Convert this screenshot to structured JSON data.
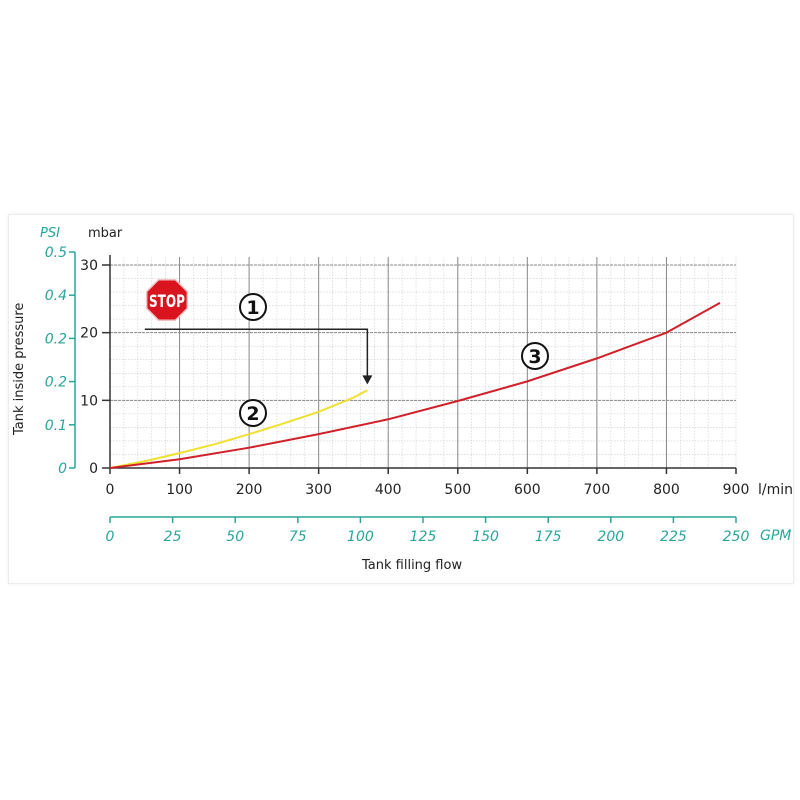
{
  "chart_data": {
    "type": "line",
    "xlabel": "Tank filling flow",
    "ylabel": "Tank inside pressure",
    "x_unit": "l/min",
    "y_unit": "mbar",
    "xlim": [
      0,
      900
    ],
    "ylim": [
      0,
      30
    ],
    "x_ticks": [
      "0",
      "100",
      "200",
      "300",
      "400",
      "500",
      "600",
      "700",
      "800",
      "900"
    ],
    "y_ticks": [
      "0",
      "10",
      "20",
      "30"
    ],
    "secondary_x": {
      "unit": "GPM",
      "range": [
        0,
        250
      ],
      "ticks": [
        "0",
        "25",
        "50",
        "75",
        "100",
        "125",
        "150",
        "175",
        "200",
        "225",
        "250"
      ],
      "color": "#2aa59a"
    },
    "secondary_y": {
      "unit": "PSI",
      "range": [
        0,
        0.5
      ],
      "ticks": [
        "0",
        "0.1",
        "0.2",
        "0.2",
        "0.4",
        "0.5"
      ],
      "color": "#2aa59a"
    },
    "grid": true,
    "series": [
      {
        "label": "2",
        "color": "#f0e030",
        "x": [
          0,
          50,
          100,
          150,
          200,
          250,
          300,
          350,
          370
        ],
        "y": [
          0,
          1.0,
          2.2,
          3.5,
          5.0,
          6.6,
          8.3,
          10.4,
          11.5
        ]
      },
      {
        "label": "3",
        "color": "#d0202a",
        "x": [
          0,
          100,
          200,
          300,
          400,
          500,
          600,
          700,
          800,
          877
        ],
        "y": [
          0,
          1.3,
          3.0,
          5.0,
          7.2,
          9.9,
          12.8,
          16.2,
          20.0,
          24.4
        ]
      }
    ],
    "annotations": {
      "stop_sign": "STOP",
      "marker_1": "1",
      "arrow": {
        "from_x": 50,
        "y": 20.5,
        "to_x": 370,
        "to_y": 12.5
      }
    }
  }
}
